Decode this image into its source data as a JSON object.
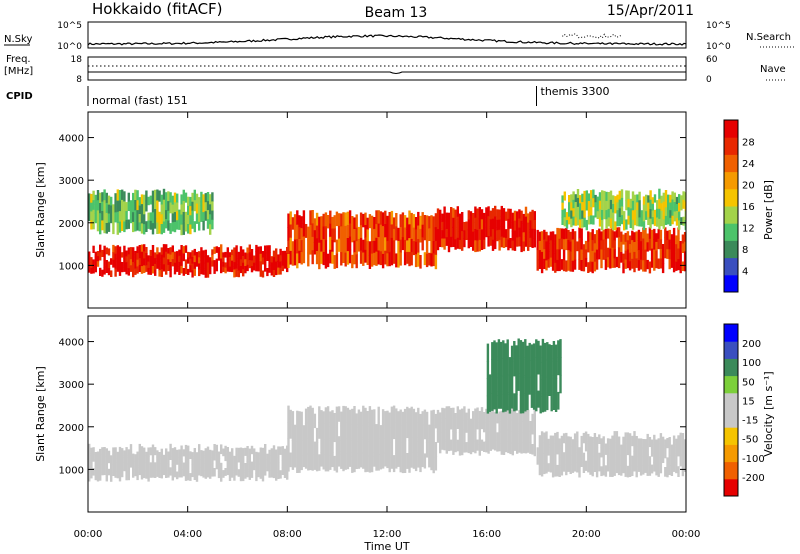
{
  "header": {
    "station": "Hokkaido (fitACF)",
    "beam": "Beam 13",
    "date": "15/Apr/2011"
  },
  "summary_panel": {
    "nsky_label": "N.Sky",
    "nsearch_label": "N.Search",
    "freq_label_1": "Freq.",
    "freq_label_2": "[MHz]",
    "nave_label": "Nave",
    "cpid_label": "CPID",
    "left_ticks_top": [
      "10^5",
      "10^0"
    ],
    "right_ticks_top": [
      "10^5",
      "10^0"
    ],
    "left_ticks_freq": [
      "18",
      "8"
    ],
    "right_ticks_nave": [
      "60",
      "0"
    ],
    "cpid_segments": [
      {
        "start_hour": 0,
        "end_hour": 18,
        "label": "normal (fast) 151"
      },
      {
        "start_hour": 18,
        "end_hour": 24,
        "label": "themis 3300"
      }
    ]
  },
  "colors": {
    "power_scale": [
      "#0000ff",
      "#3a4fbf",
      "#3b8a5a",
      "#4cc36a",
      "#a3d34a",
      "#f5c400",
      "#f59a00",
      "#f06000",
      "#e82800",
      "#e60000"
    ],
    "velocity_scale": [
      "#0000ff",
      "#3a4fbf",
      "#3b8a5a",
      "#7ccf3a",
      "#c8c8c8",
      "#c8c8c8",
      "#f5c400",
      "#f59a00",
      "#f06000",
      "#e60000"
    ],
    "ground_scatter": "#c8c8c8"
  },
  "chart_data": [
    {
      "type": "heatmap",
      "name": "power",
      "ylabel": "Slant Range [km]",
      "xlim": [
        0,
        24
      ],
      "ylim": [
        0,
        4600
      ],
      "yticks": [
        "1000",
        "2000",
        "3000",
        "4000"
      ],
      "colorbar": {
        "label": "Power [dB]",
        "ticks": [
          "4",
          "8",
          "12",
          "16",
          "20",
          "24",
          "28"
        ],
        "range": [
          0,
          32
        ]
      },
      "regions": [
        {
          "hour_start": 0,
          "hour_end": 8,
          "range_low_km": 800,
          "range_high_km": 1400,
          "value_db": 30
        },
        {
          "hour_start": 8,
          "hour_end": 14,
          "range_low_km": 1000,
          "range_high_km": 2200,
          "value_db": 26
        },
        {
          "hour_start": 14,
          "hour_end": 18,
          "range_low_km": 1400,
          "range_high_km": 2300,
          "value_db": 30
        },
        {
          "hour_start": 18,
          "hour_end": 24,
          "range_low_km": 900,
          "range_high_km": 1800,
          "value_db": 28
        },
        {
          "hour_start": 0,
          "hour_end": 5,
          "range_low_km": 1800,
          "range_high_km": 2700,
          "value_db": 12
        },
        {
          "hour_start": 19,
          "hour_end": 24,
          "range_low_km": 1900,
          "range_high_km": 2700,
          "value_db": 14
        }
      ]
    },
    {
      "type": "heatmap",
      "name": "velocity",
      "ylabel": "Slant Range [km]",
      "xlabel": "Time UT",
      "xlim": [
        0,
        24
      ],
      "ylim": [
        0,
        4600
      ],
      "yticks": [
        "1000",
        "2000",
        "3000",
        "4000"
      ],
      "xticks": [
        "00:00",
        "04:00",
        "08:00",
        "12:00",
        "16:00",
        "20:00",
        "00:00"
      ],
      "colorbar": {
        "label": "Velocity [m s⁻¹]",
        "ticks": [
          "200",
          "100",
          "50",
          "15",
          "-15",
          "-50",
          "-100",
          "-200"
        ],
        "range": [
          -250,
          250
        ]
      },
      "regions": [
        {
          "hour_start": 0,
          "hour_end": 8,
          "range_low_km": 800,
          "range_high_km": 1500,
          "value_ms": 0
        },
        {
          "hour_start": 8,
          "hour_end": 14,
          "range_low_km": 1000,
          "range_high_km": 2400,
          "value_ms": 0
        },
        {
          "hour_start": 14,
          "hour_end": 18,
          "range_low_km": 1400,
          "range_high_km": 2400,
          "value_ms": 0
        },
        {
          "hour_start": 16,
          "hour_end": 19,
          "range_low_km": 2400,
          "range_high_km": 4000,
          "value_ms": 60
        },
        {
          "hour_start": 18,
          "hour_end": 24,
          "range_low_km": 900,
          "range_high_km": 1800,
          "value_ms": 0
        }
      ]
    }
  ]
}
